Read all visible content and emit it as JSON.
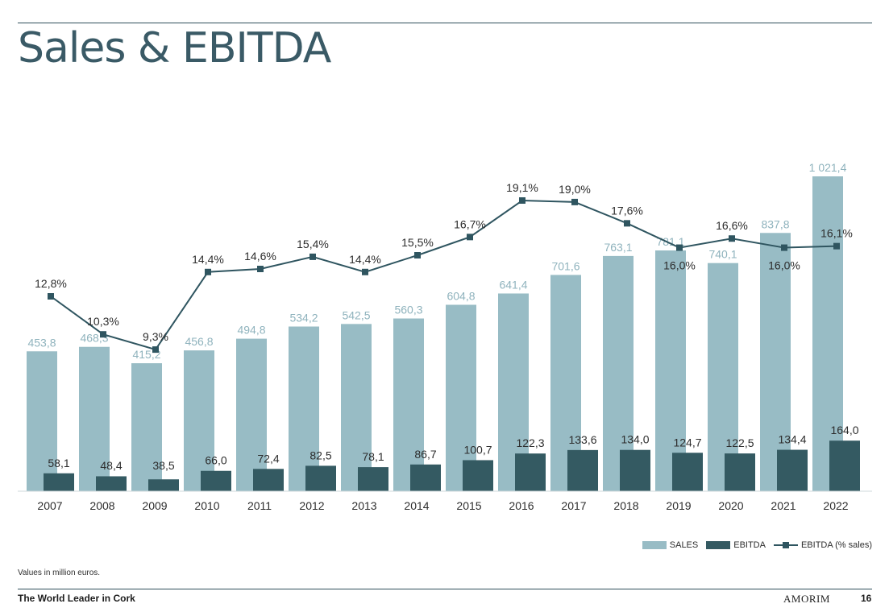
{
  "title": "Sales & EBITDA",
  "note": "Values in million euros.",
  "footer": {
    "tagline": "The World Leader in Cork",
    "brand": "AMORIM",
    "page": "16"
  },
  "legend": {
    "sales": "SALES",
    "ebitda": "EBITDA",
    "ebitda_pct": "EBITDA (% sales)"
  },
  "colors": {
    "sales": "#98bcc5",
    "ebitda": "#345a62",
    "line": "#2f5560",
    "sales_label": "#8fb3bd",
    "text": "#2d2d2d"
  },
  "chart_data": {
    "type": "bar",
    "categories": [
      "2007",
      "2008",
      "2009",
      "2010",
      "2011",
      "2012",
      "2013",
      "2014",
      "2015",
      "2016",
      "2017",
      "2018",
      "2019",
      "2020",
      "2021",
      "2022"
    ],
    "series": [
      {
        "name": "SALES",
        "type": "bar",
        "values": [
          453.8,
          468.3,
          415.2,
          456.8,
          494.8,
          534.2,
          542.5,
          560.3,
          604.8,
          641.4,
          701.6,
          763.1,
          781.1,
          740.1,
          837.8,
          1021.4
        ],
        "labels": [
          "453,8",
          "468,3",
          "415,2",
          "456,8",
          "494,8",
          "534,2",
          "542,5",
          "560,3",
          "604,8",
          "641,4",
          "701,6",
          "763,1",
          "781,1",
          "740,1",
          "837,8",
          "1 021,4"
        ]
      },
      {
        "name": "EBITDA",
        "type": "bar",
        "values": [
          58.1,
          48.4,
          38.5,
          66.0,
          72.4,
          82.5,
          78.1,
          86.7,
          100.7,
          122.3,
          133.6,
          134.0,
          124.7,
          122.5,
          134.4,
          164.0
        ],
        "labels": [
          "58,1",
          "48,4",
          "38,5",
          "66,0",
          "72,4",
          "82,5",
          "78,1",
          "86,7",
          "100,7",
          "122,3",
          "133,6",
          "134,0",
          "124,7",
          "122,5",
          "134,4",
          "164,0"
        ]
      },
      {
        "name": "EBITDA (% sales)",
        "type": "line",
        "values": [
          12.8,
          10.3,
          9.3,
          14.4,
          14.6,
          15.4,
          14.4,
          15.5,
          16.7,
          19.1,
          19.0,
          17.6,
          16.0,
          16.6,
          16.0,
          16.1
        ],
        "labels": [
          "12,8%",
          "10,3%",
          "9,3%",
          "14,4%",
          "14,6%",
          "15,4%",
          "14,4%",
          "15,5%",
          "16,7%",
          "19,1%",
          "19,0%",
          "17,6%",
          "16,0%",
          "16,6%",
          "16,0%",
          "16,1%"
        ]
      }
    ],
    "legend_position": "bottom-right",
    "grid": false
  }
}
